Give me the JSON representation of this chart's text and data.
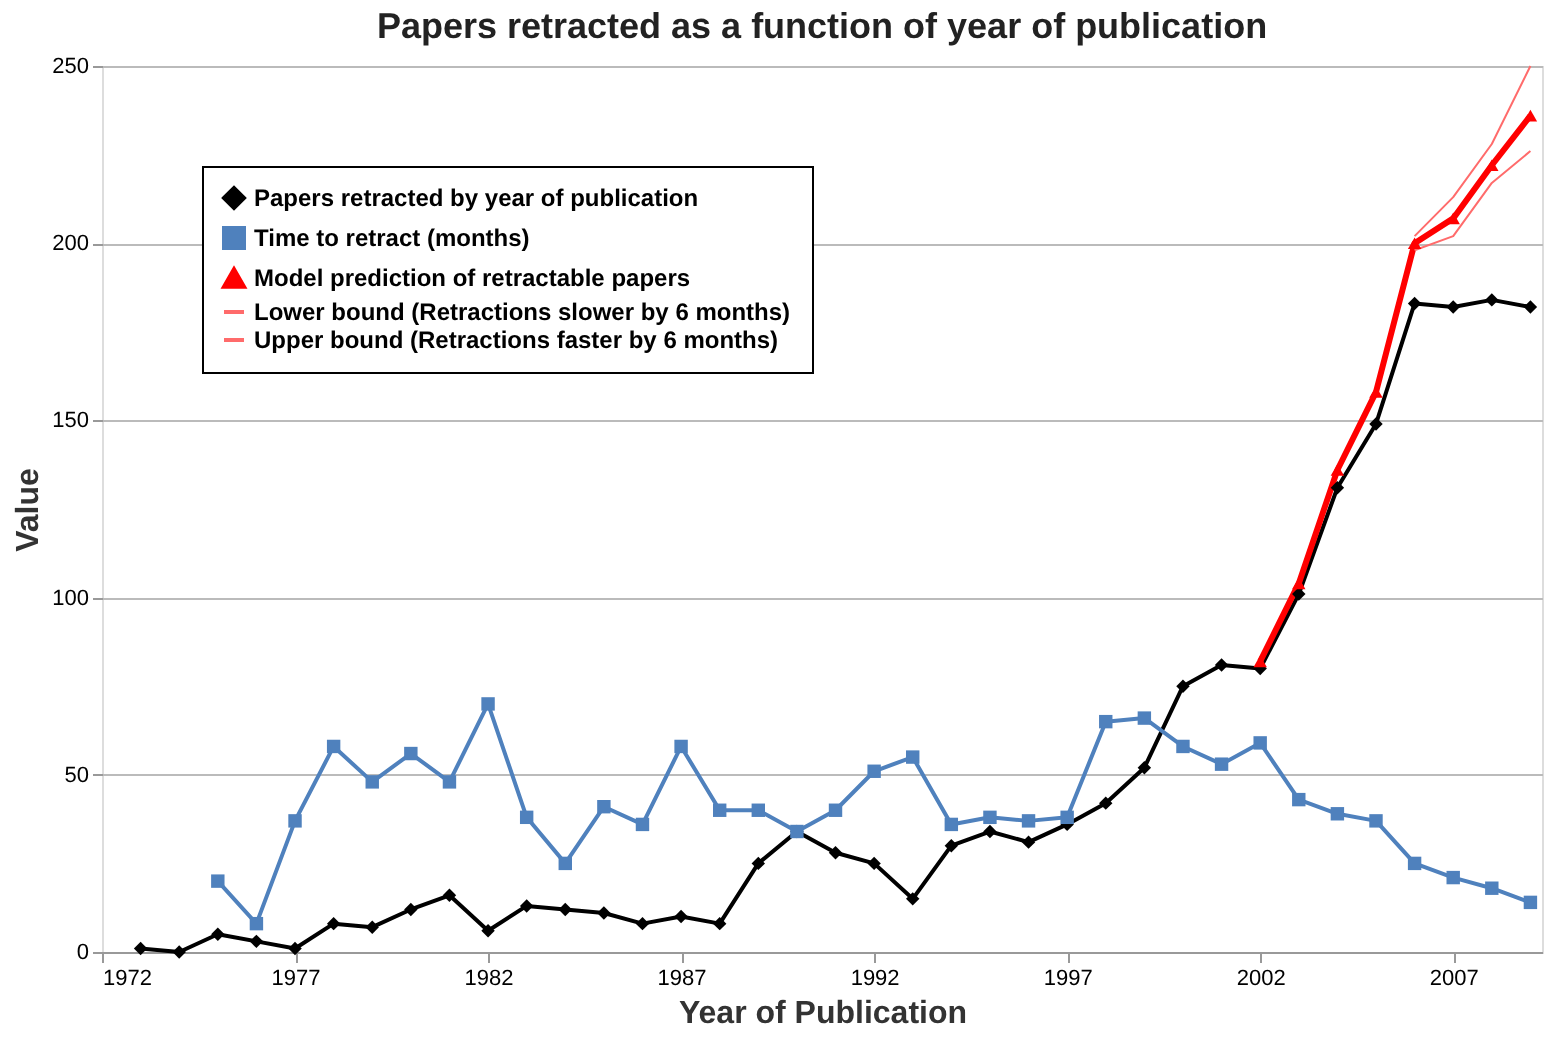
{
  "chart_data": {
    "type": "line",
    "title": "Papers retracted as a function of year of publication",
    "xlabel": "Year of Publication",
    "ylabel": "Value",
    "xlim": [
      1972,
      2009.3
    ],
    "xticks": [
      1972,
      1977,
      1982,
      1987,
      1992,
      1997,
      2002,
      2007
    ],
    "ylim": [
      0,
      250
    ],
    "yticks": [
      0,
      50,
      100,
      150,
      200,
      250
    ],
    "grid": "y",
    "legend": "top left",
    "series": [
      {
        "name": "Papers retracted by year of publication",
        "color": "#000000",
        "marker": "diamond",
        "x": [
          1973,
          1974,
          1975,
          1976,
          1977,
          1978,
          1979,
          1980,
          1981,
          1982,
          1983,
          1984,
          1985,
          1986,
          1987,
          1988,
          1989,
          1990,
          1991,
          1992,
          1993,
          1994,
          1995,
          1996,
          1997,
          1998,
          1999,
          2000,
          2001,
          2002,
          2003,
          2004,
          2005,
          2006,
          2007,
          2008,
          2009
        ],
        "values": [
          1,
          0,
          5,
          3,
          1,
          8,
          7,
          12,
          16,
          6,
          13,
          12,
          11,
          8,
          10,
          8,
          25,
          34,
          28,
          25,
          15,
          30,
          34,
          31,
          36,
          42,
          52,
          75,
          81,
          80,
          101,
          131,
          149,
          183,
          182,
          184,
          182
        ]
      },
      {
        "name": "Time to retract (months)",
        "color": "#4f81bd",
        "marker": "square",
        "x": [
          1975,
          1976,
          1977,
          1978,
          1979,
          1980,
          1981,
          1982,
          1983,
          1984,
          1985,
          1986,
          1987,
          1988,
          1989,
          1990,
          1991,
          1992,
          1993,
          1994,
          1995,
          1996,
          1997,
          1998,
          1999,
          2000,
          2001,
          2002,
          2003,
          2004,
          2005,
          2006,
          2007,
          2008,
          2009
        ],
        "values": [
          20,
          8,
          37,
          58,
          48,
          56,
          48,
          70,
          38,
          25,
          41,
          36,
          58,
          40,
          40,
          34,
          40,
          51,
          55,
          36,
          38,
          37,
          38,
          65,
          66,
          58,
          53,
          59,
          43,
          39,
          37,
          25,
          21,
          18,
          14
        ]
      },
      {
        "name": "Model prediction of retractable papers",
        "color": "#ff0000",
        "marker": "triangle",
        "x": [
          2002,
          2003,
          2004,
          2005,
          2006,
          2007,
          2008,
          2009
        ],
        "values": [
          82,
          104,
          136,
          158,
          200,
          207,
          222,
          236
        ]
      },
      {
        "name": "Lower bound (Retractions slower by 6 months)",
        "color": "#ff6b6b",
        "marker": "none",
        "x": [
          2006,
          2007,
          2008,
          2009
        ],
        "values": [
          198,
          202,
          217,
          226
        ]
      },
      {
        "name": "Upper bound (Retractions faster by 6 months)",
        "color": "#ff6b6b",
        "marker": "none",
        "x": [
          2006,
          2007,
          2008,
          2009
        ],
        "values": [
          202,
          213,
          228,
          250
        ]
      }
    ]
  }
}
